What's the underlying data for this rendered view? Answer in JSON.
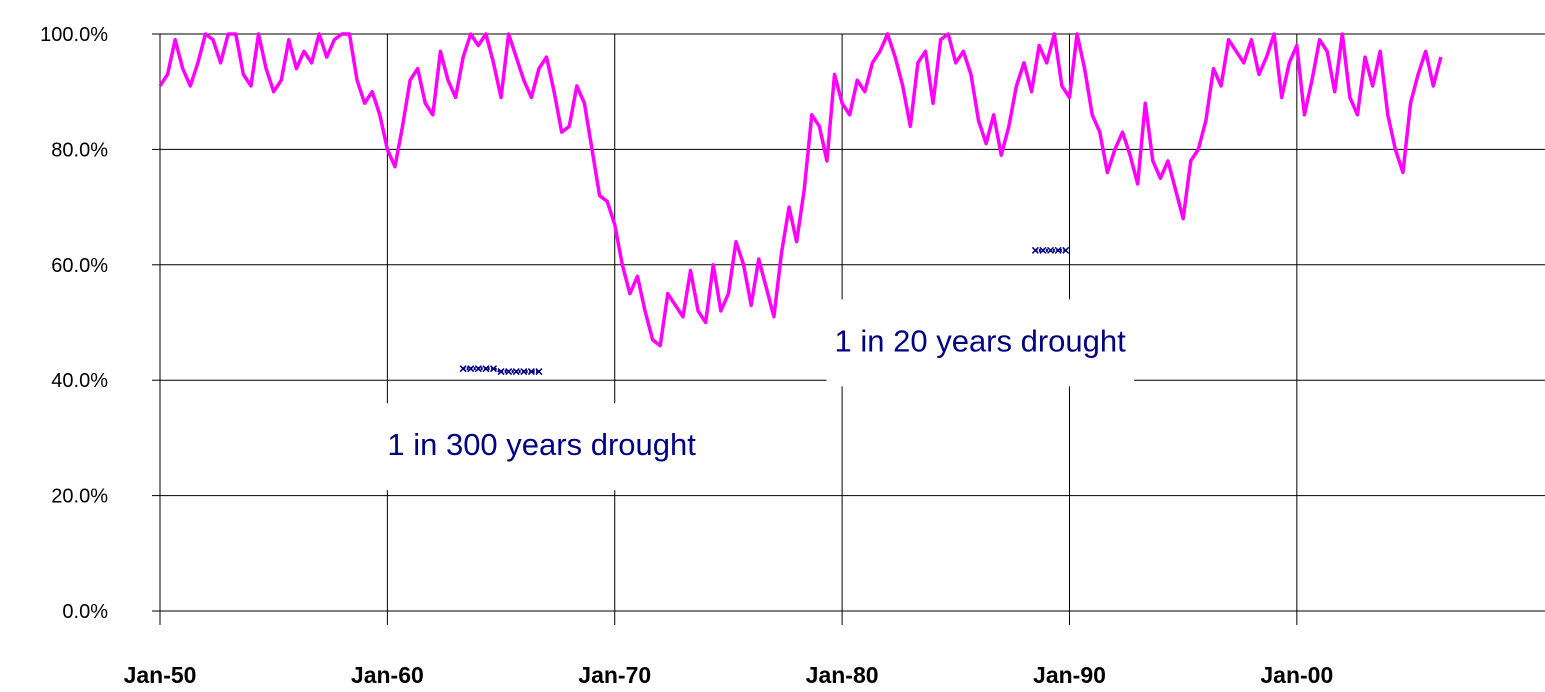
{
  "chart_data": {
    "type": "line",
    "title": "",
    "xlabel": "",
    "ylabel": "",
    "x_range": [
      "1950-01",
      "2005-06"
    ],
    "ylim": [
      0,
      100
    ],
    "y_unit": "%",
    "y_ticks": [
      0,
      20,
      40,
      60,
      80,
      100
    ],
    "y_tick_labels": [
      "0.0%",
      "20.0%",
      "40.0%",
      "60.0%",
      "80.0%",
      "100.0%"
    ],
    "x_ticks": [
      "1950-01",
      "1960-01",
      "1970-01",
      "1980-01",
      "1990-01",
      "2000-01"
    ],
    "x_tick_labels": [
      "Jan-50",
      "Jan-60",
      "Jan-70",
      "Jan-80",
      "Jan-90",
      "Jan-00"
    ],
    "grid": true,
    "legend": "none",
    "series": [
      {
        "color": "#ff00ff",
        "points": [
          [
            "1950-01",
            91
          ],
          [
            "1950-05",
            93
          ],
          [
            "1950-09",
            99
          ],
          [
            "1951-01",
            94
          ],
          [
            "1951-05",
            91
          ],
          [
            "1951-09",
            95
          ],
          [
            "1952-01",
            100
          ],
          [
            "1952-05",
            99
          ],
          [
            "1952-09",
            95
          ],
          [
            "1953-01",
            100
          ],
          [
            "1953-05",
            100
          ],
          [
            "1953-09",
            93
          ],
          [
            "1954-01",
            91
          ],
          [
            "1954-05",
            100
          ],
          [
            "1954-09",
            94
          ],
          [
            "1955-01",
            90
          ],
          [
            "1955-05",
            92
          ],
          [
            "1955-09",
            99
          ],
          [
            "1956-01",
            94
          ],
          [
            "1956-05",
            97
          ],
          [
            "1956-09",
            95
          ],
          [
            "1957-01",
            100
          ],
          [
            "1957-05",
            96
          ],
          [
            "1957-09",
            99
          ],
          [
            "1958-01",
            100
          ],
          [
            "1958-05",
            100
          ],
          [
            "1958-09",
            92
          ],
          [
            "1959-01",
            88
          ],
          [
            "1959-05",
            90
          ],
          [
            "1959-09",
            86
          ],
          [
            "1960-01",
            80
          ],
          [
            "1960-05",
            77
          ],
          [
            "1960-09",
            84
          ],
          [
            "1961-01",
            92
          ],
          [
            "1961-05",
            94
          ],
          [
            "1961-09",
            88
          ],
          [
            "1962-01",
            86
          ],
          [
            "1962-05",
            97
          ],
          [
            "1962-09",
            92
          ],
          [
            "1963-01",
            89
          ],
          [
            "1963-05",
            96
          ],
          [
            "1963-09",
            100
          ],
          [
            "1964-01",
            98
          ],
          [
            "1964-05",
            100
          ],
          [
            "1964-09",
            95
          ],
          [
            "1965-01",
            89
          ],
          [
            "1965-05",
            100
          ],
          [
            "1965-09",
            96
          ],
          [
            "1966-01",
            92
          ],
          [
            "1966-05",
            89
          ],
          [
            "1966-09",
            94
          ],
          [
            "1967-01",
            96
          ],
          [
            "1967-05",
            90
          ],
          [
            "1967-09",
            83
          ],
          [
            "1968-01",
            84
          ],
          [
            "1968-05",
            91
          ],
          [
            "1968-09",
            88
          ],
          [
            "1969-01",
            80
          ],
          [
            "1969-05",
            72
          ],
          [
            "1969-09",
            71
          ],
          [
            "1970-01",
            67
          ],
          [
            "1970-05",
            60
          ],
          [
            "1970-09",
            55
          ],
          [
            "1971-01",
            58
          ],
          [
            "1971-05",
            52
          ],
          [
            "1971-09",
            47
          ],
          [
            "1972-01",
            46
          ],
          [
            "1972-05",
            55
          ],
          [
            "1972-09",
            53
          ],
          [
            "1973-01",
            51
          ],
          [
            "1973-05",
            59
          ],
          [
            "1973-09",
            52
          ],
          [
            "1974-01",
            50
          ],
          [
            "1974-05",
            60
          ],
          [
            "1974-09",
            52
          ],
          [
            "1975-01",
            55
          ],
          [
            "1975-05",
            64
          ],
          [
            "1975-09",
            60
          ],
          [
            "1976-01",
            53
          ],
          [
            "1976-05",
            61
          ],
          [
            "1976-09",
            56
          ],
          [
            "1977-01",
            51
          ],
          [
            "1977-05",
            62
          ],
          [
            "1977-09",
            70
          ],
          [
            "1978-01",
            64
          ],
          [
            "1978-05",
            73
          ],
          [
            "1978-09",
            86
          ],
          [
            "1979-01",
            84
          ],
          [
            "1979-05",
            78
          ],
          [
            "1979-09",
            93
          ],
          [
            "1980-01",
            88
          ],
          [
            "1980-05",
            86
          ],
          [
            "1980-09",
            92
          ],
          [
            "1981-01",
            90
          ],
          [
            "1981-05",
            95
          ],
          [
            "1981-09",
            97
          ],
          [
            "1982-01",
            100
          ],
          [
            "1982-05",
            96
          ],
          [
            "1982-09",
            91
          ],
          [
            "1983-01",
            84
          ],
          [
            "1983-05",
            95
          ],
          [
            "1983-09",
            97
          ],
          [
            "1984-01",
            88
          ],
          [
            "1984-05",
            99
          ],
          [
            "1984-09",
            100
          ],
          [
            "1985-01",
            95
          ],
          [
            "1985-05",
            97
          ],
          [
            "1985-09",
            93
          ],
          [
            "1986-01",
            85
          ],
          [
            "1986-05",
            81
          ],
          [
            "1986-09",
            86
          ],
          [
            "1987-01",
            79
          ],
          [
            "1987-05",
            84
          ],
          [
            "1987-09",
            91
          ],
          [
            "1988-01",
            95
          ],
          [
            "1988-05",
            90
          ],
          [
            "1988-09",
            98
          ],
          [
            "1989-01",
            95
          ],
          [
            "1989-05",
            100
          ],
          [
            "1989-09",
            91
          ],
          [
            "1990-01",
            89
          ],
          [
            "1990-05",
            100
          ],
          [
            "1990-09",
            94
          ],
          [
            "1991-01",
            86
          ],
          [
            "1991-05",
            83
          ],
          [
            "1991-09",
            76
          ],
          [
            "1992-01",
            80
          ],
          [
            "1992-05",
            83
          ],
          [
            "1992-09",
            79
          ],
          [
            "1993-01",
            74
          ],
          [
            "1993-05",
            88
          ],
          [
            "1993-09",
            78
          ],
          [
            "1994-01",
            75
          ],
          [
            "1994-05",
            78
          ],
          [
            "1994-09",
            73
          ],
          [
            "1995-01",
            68
          ],
          [
            "1995-05",
            78
          ],
          [
            "1995-09",
            80
          ],
          [
            "1996-01",
            85
          ],
          [
            "1996-05",
            94
          ],
          [
            "1996-09",
            91
          ],
          [
            "1997-01",
            99
          ],
          [
            "1997-05",
            97
          ],
          [
            "1997-09",
            95
          ],
          [
            "1998-01",
            99
          ],
          [
            "1998-05",
            93
          ],
          [
            "1998-09",
            96
          ],
          [
            "1999-01",
            100
          ],
          [
            "1999-05",
            89
          ],
          [
            "1999-09",
            95
          ],
          [
            "2000-01",
            98
          ],
          [
            "2000-05",
            86
          ],
          [
            "2000-09",
            92
          ],
          [
            "2001-01",
            99
          ],
          [
            "2001-05",
            97
          ],
          [
            "2001-09",
            90
          ],
          [
            "2002-01",
            100
          ],
          [
            "2002-05",
            89
          ],
          [
            "2002-09",
            86
          ],
          [
            "2003-01",
            96
          ],
          [
            "2003-05",
            91
          ],
          [
            "2003-09",
            97
          ],
          [
            "2004-01",
            86
          ],
          [
            "2004-05",
            80
          ],
          [
            "2004-09",
            76
          ],
          [
            "2005-01",
            88
          ],
          [
            "2005-05",
            93
          ],
          [
            "2005-09",
            97
          ],
          [
            "2006-01",
            91
          ],
          [
            "2006-05",
            96
          ]
        ]
      },
      {
        "color": "#000080",
        "marker": "x",
        "points": [
          [
            "1963-05",
            42
          ],
          [
            "1963-09",
            42
          ],
          [
            "1964-01",
            42
          ],
          [
            "1964-05",
            42
          ],
          [
            "1964-09",
            42
          ],
          [
            "1965-01",
            41.5
          ],
          [
            "1965-05",
            41.5
          ],
          [
            "1965-09",
            41.5
          ],
          [
            "1966-01",
            41.5
          ],
          [
            "1966-05",
            41.5
          ],
          [
            "1966-09",
            41.5
          ]
        ]
      },
      {
        "color": "#000080",
        "marker": "x",
        "points": [
          [
            "1988-07",
            62.5
          ],
          [
            "1988-11",
            62.5
          ],
          [
            "1989-03",
            62.5
          ],
          [
            "1989-07",
            62.5
          ],
          [
            "1989-11",
            62.5
          ]
        ]
      }
    ],
    "annotations": [
      {
        "text": "1 in 300 years drought",
        "x": "1960-01",
        "y": 27
      },
      {
        "text": "1 in 20 years drought",
        "x": "1979-09",
        "y": 45
      }
    ]
  }
}
